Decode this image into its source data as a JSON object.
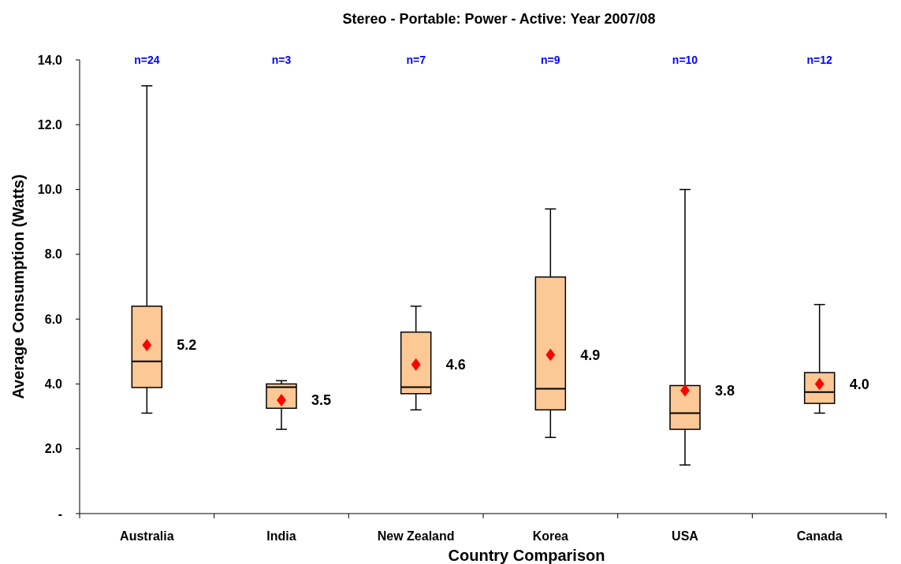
{
  "chart_data": {
    "type": "box",
    "title": "Stereo - Portable: Power - Active: Year 2007/08",
    "xlabel": "Country Comparison",
    "ylabel": "Average Consumption (Watts)",
    "categories": [
      "Australia",
      "India",
      "New Zealand",
      "Korea",
      "USA",
      "Canada"
    ],
    "series": [
      {
        "color": "#fbc896",
        "boxes": [
          {
            "low": 3.1,
            "q1": 3.89,
            "median": 4.7,
            "q3": 6.4,
            "high": 13.2,
            "mean": 5.2
          },
          {
            "low": 2.6,
            "q1": 3.25,
            "median": 3.9,
            "q3": 4.0,
            "high": 4.1,
            "mean": 3.5
          },
          {
            "low": 3.2,
            "q1": 3.7,
            "median": 3.9,
            "q3": 5.6,
            "high": 6.4,
            "mean": 4.6
          },
          {
            "low": 2.35,
            "q1": 3.2,
            "median": 3.85,
            "q3": 7.3,
            "high": 9.4,
            "mean": 4.9
          },
          {
            "low": 1.5,
            "q1": 2.6,
            "median": 3.1,
            "q3": 3.95,
            "high": 10.0,
            "mean": 3.8
          },
          {
            "low": 3.1,
            "q1": 3.4,
            "median": 3.75,
            "q3": 4.35,
            "high": 6.45,
            "mean": 4.0
          }
        ],
        "value_labels": [
          "5.2",
          "3.5",
          "4.6",
          "4.9",
          "3.8",
          "4.0"
        ]
      }
    ],
    "marker": "diamond",
    "ylim": [
      0,
      14
    ],
    "yticks": [
      {
        "value": 0,
        "label": "-"
      },
      {
        "value": 2,
        "label": "2.0"
      },
      {
        "value": 4,
        "label": "4.0"
      },
      {
        "value": 6,
        "label": "6.0"
      },
      {
        "value": 8,
        "label": "8.0"
      },
      {
        "value": 10,
        "label": "10.0"
      },
      {
        "value": 12,
        "label": "12.0"
      },
      {
        "value": 14,
        "label": "14.0"
      }
    ],
    "grid": false,
    "annotations": [
      "n=24",
      "n=3",
      "n=7",
      "n=9",
      "n=10",
      "n=12"
    ]
  }
}
